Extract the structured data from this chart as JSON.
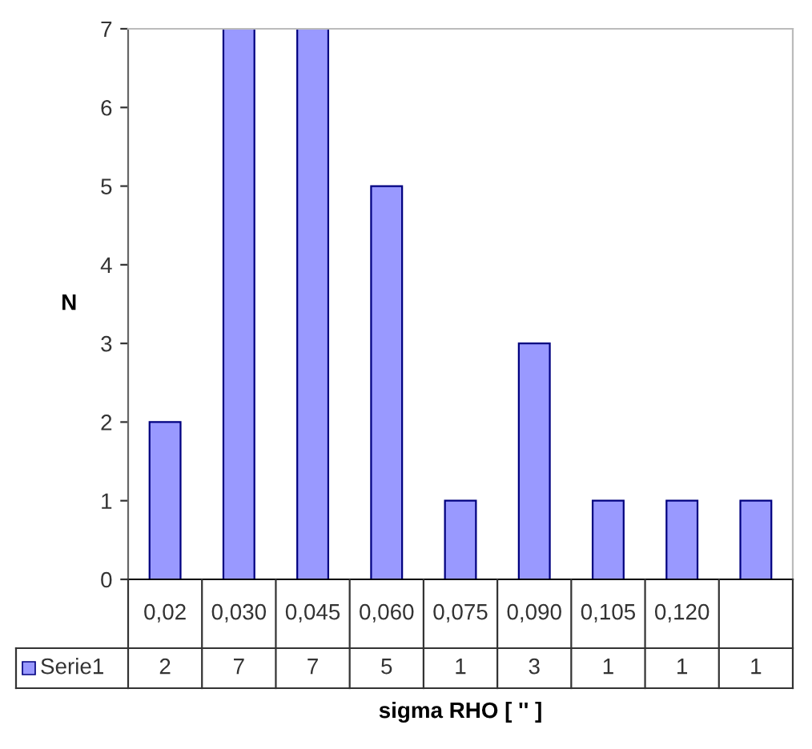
{
  "chart_data": {
    "type": "bar",
    "xlabel": "sigma RHO [ '' ]",
    "ylabel": "N",
    "categories": [
      "0,02",
      "0,030",
      "0,045",
      "0,060",
      "0,075",
      "0,090",
      "0,105",
      "0,120",
      null
    ],
    "series": [
      {
        "name": "Serie1",
        "color": "#9999ff",
        "values": [
          2,
          7,
          7,
          5,
          1,
          3,
          1,
          1,
          1
        ]
      }
    ],
    "ylim": [
      0,
      7
    ],
    "yticks": [
      0,
      1,
      2,
      3,
      4,
      5,
      6,
      7
    ],
    "grid": false,
    "legend": "bottom",
    "data_labels": true
  }
}
